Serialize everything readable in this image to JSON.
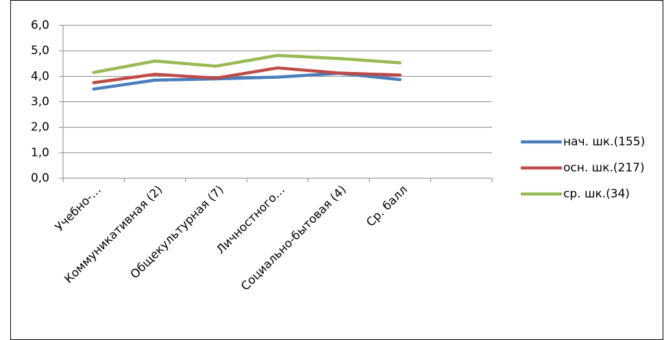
{
  "chart_data": {
    "type": "line",
    "categories": [
      "Учебно-…",
      "Коммуникативная (2)",
      "Общекультурная (7)",
      "Личностного…",
      "Социально-бытовая (4)",
      "Ср. балл",
      null
    ],
    "series": [
      {
        "name": "нач. шк.(155)",
        "color": "#4a7ebb",
        "values": [
          3.5,
          3.85,
          3.9,
          3.97,
          4.12,
          3.87,
          null
        ]
      },
      {
        "name": "осн. шк.(217)",
        "color": "#be4b48",
        "values": [
          3.75,
          4.08,
          3.93,
          4.33,
          4.13,
          4.05,
          null
        ]
      },
      {
        "name": "ср. шк.(34)",
        "color": "#98b954",
        "values": [
          4.15,
          4.6,
          4.4,
          4.82,
          4.7,
          4.53,
          null
        ]
      }
    ],
    "ylim": [
      0,
      6
    ],
    "yticks": [
      {
        "value": 0,
        "label": "0,0"
      },
      {
        "value": 1,
        "label": "1,0"
      },
      {
        "value": 2,
        "label": "2,0"
      },
      {
        "value": 3,
        "label": "3,0"
      },
      {
        "value": 4,
        "label": "4,0"
      },
      {
        "value": 5,
        "label": "5,0"
      },
      {
        "value": 6,
        "label": "6,0"
      }
    ],
    "grid": true,
    "legend": "right"
  }
}
